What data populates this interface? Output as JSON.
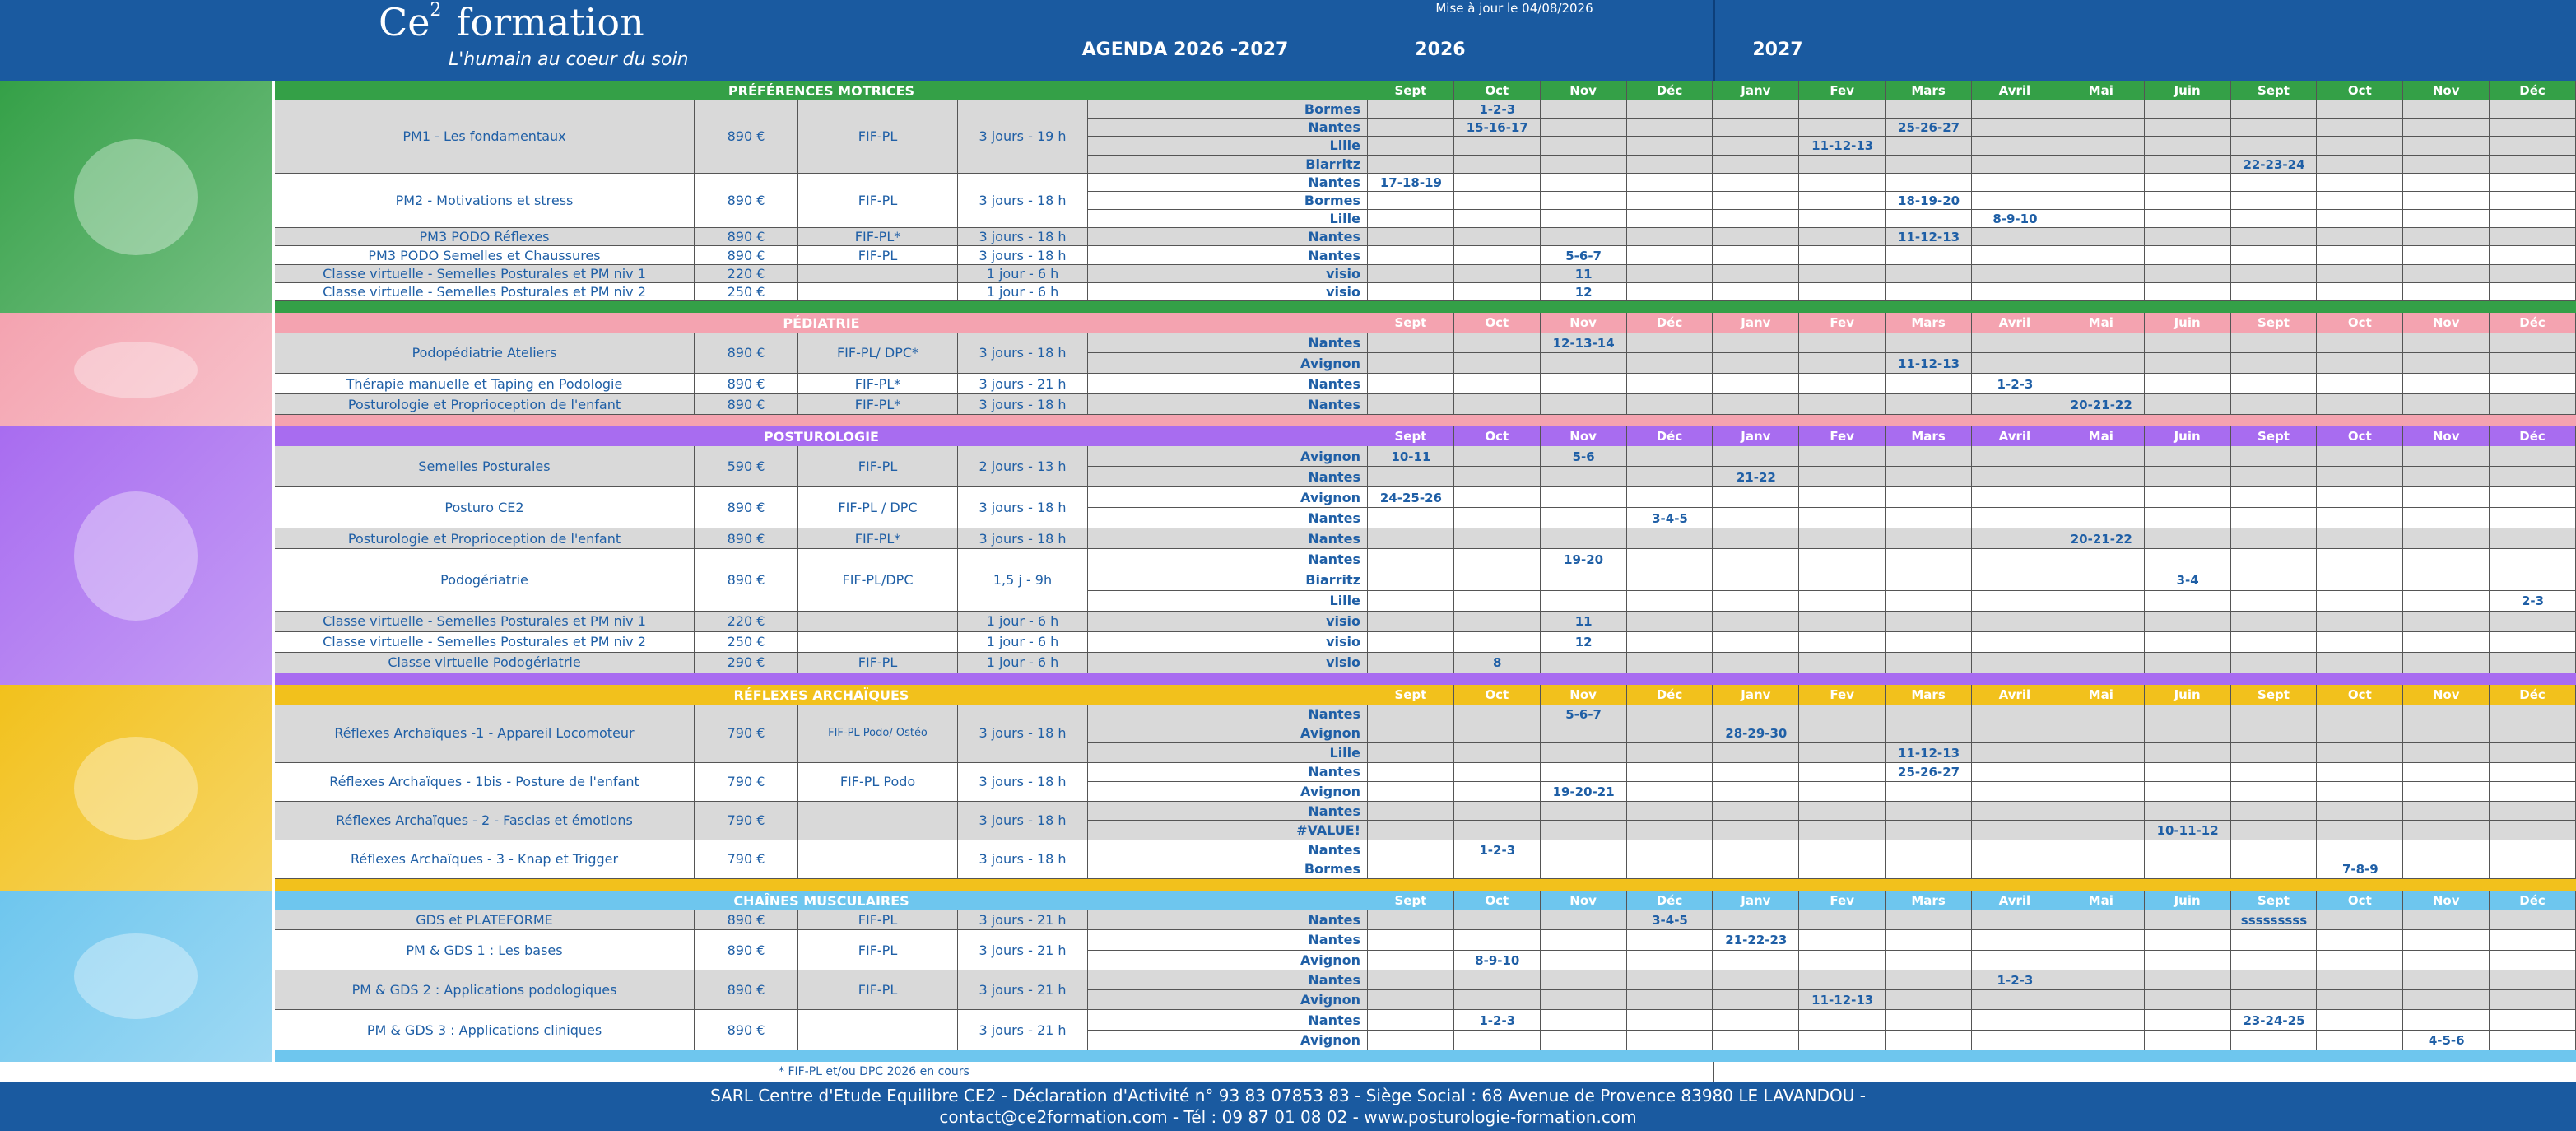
{
  "header": {
    "logo": "Ce",
    "logo_sup": "2",
    "logo_rest": "formation",
    "tagline": "L'humain au coeur du soin",
    "updated": "Mise à jour le 04/08/2026",
    "title": "AGENDA 2026 -2027",
    "year1": "2026",
    "year2": "2027"
  },
  "months": [
    "Sept",
    "Oct",
    "Nov",
    "Déc",
    "Janv",
    "Fev",
    "Mars",
    "Avril",
    "Mai",
    "Juin",
    "Sept",
    "Oct",
    "Nov",
    "Déc"
  ],
  "sections": [
    {
      "title": "PRÉFÉRENCES MOTRICES",
      "color": "#34a047",
      "courses": [
        {
          "name": "PM1 - Les fondamentaux",
          "price": "890 €",
          "funding": "FIF-PL",
          "duration": "3 jours - 19 h",
          "sessions": [
            {
              "city": "Bormes",
              "dates": [
                {
                  "col": 1,
                  "text": "1-2-3"
                }
              ]
            },
            {
              "city": "Nantes",
              "dates": [
                {
                  "col": 1,
                  "text": "15-16-17"
                },
                {
                  "col": 6,
                  "text": "25-26-27"
                }
              ]
            },
            {
              "city": "Lille",
              "dates": [
                {
                  "col": 5,
                  "text": "11-12-13"
                }
              ]
            },
            {
              "city": "Biarritz",
              "dates": [
                {
                  "col": 10,
                  "text": "22-23-24"
                }
              ]
            }
          ]
        },
        {
          "name": "PM2 - Motivations et stress",
          "price": "890 €",
          "funding": "FIF-PL",
          "duration": "3 jours - 18 h",
          "sessions": [
            {
              "city": "Nantes",
              "dates": [
                {
                  "col": 0,
                  "text": "17-18-19"
                }
              ]
            },
            {
              "city": "Bormes",
              "dates": [
                {
                  "col": 6,
                  "text": "18-19-20"
                }
              ]
            },
            {
              "city": "Lille",
              "dates": [
                {
                  "col": 7,
                  "text": "8-9-10"
                }
              ]
            }
          ]
        },
        {
          "name": "PM3 PODO Réflexes",
          "price": "890 €",
          "funding": "FIF-PL*",
          "duration": "3 jours - 18 h",
          "sessions": [
            {
              "city": "Nantes",
              "dates": [
                {
                  "col": 6,
                  "text": "11-12-13"
                }
              ]
            }
          ]
        },
        {
          "name": "PM3 PODO Semelles et Chaussures",
          "price": "890 €",
          "funding": "FIF-PL",
          "duration": "3 jours - 18 h",
          "sessions": [
            {
              "city": "Nantes",
              "dates": [
                {
                  "col": 2,
                  "text": "5-6-7"
                }
              ]
            }
          ]
        },
        {
          "name": "Classe virtuelle - Semelles Posturales et PM niv 1",
          "price": "220 €",
          "duration": "1 jour - 6 h",
          "sessions": [
            {
              "city": "visio",
              "dates": [
                {
                  "col": 2,
                  "text": "11"
                }
              ]
            }
          ]
        },
        {
          "name": "Classe virtuelle - Semelles Posturales et PM niv 2",
          "price": "250 €",
          "duration": "1 jour - 6 h",
          "sessions": [
            {
              "city": "visio",
              "dates": [
                {
                  "col": 2,
                  "text": "12"
                }
              ]
            }
          ]
        }
      ]
    },
    {
      "title": "PÉDIATRIE",
      "color": "#f4a3b0",
      "courses": [
        {
          "name": "Podopédiatrie Ateliers",
          "price": "890 €",
          "funding": "FIF-PL/ DPC*",
          "duration": "3 jours - 18 h",
          "sessions": [
            {
              "city": "Nantes",
              "dates": [
                {
                  "col": 2,
                  "text": "12-13-14"
                }
              ]
            },
            {
              "city": "Avignon",
              "dates": [
                {
                  "col": 6,
                  "text": "11-12-13"
                }
              ]
            }
          ]
        },
        {
          "name": "Thérapie manuelle et Taping en Podologie",
          "price": "890 €",
          "funding": "FIF-PL*",
          "duration": "3 jours  - 21 h",
          "sessions": [
            {
              "city": "Nantes",
              "dates": [
                {
                  "col": 7,
                  "text": "1-2-3"
                }
              ]
            }
          ]
        },
        {
          "name": "Posturologie et Proprioception de l'enfant",
          "price": "890 €",
          "funding": "FIF-PL*",
          "duration": "3 jours - 18 h",
          "sessions": [
            {
              "city": "Nantes",
              "dates": [
                {
                  "col": 8,
                  "text": "20-21-22"
                }
              ]
            }
          ]
        }
      ]
    },
    {
      "title": "POSTUROLOGIE",
      "color": "#a86cf0",
      "courses": [
        {
          "name": "Semelles Posturales",
          "price": "590 €",
          "funding": "FIF-PL",
          "duration": "2 jours - 13 h",
          "sessions": [
            {
              "city": "Avignon",
              "dates": [
                {
                  "col": 0,
                  "text": "10-11"
                },
                {
                  "col": 2,
                  "text": "5-6"
                }
              ]
            },
            {
              "city": "Nantes",
              "dates": [
                {
                  "col": 4,
                  "text": "21-22"
                }
              ]
            }
          ]
        },
        {
          "name": "Posturo CE2",
          "price": "890 €",
          "funding": "FIF-PL / DPC",
          "duration": "3 jours - 18 h",
          "sessions": [
            {
              "city": "Avignon",
              "dates": [
                {
                  "col": 0,
                  "text": "24-25-26"
                }
              ]
            },
            {
              "city": "Nantes",
              "dates": [
                {
                  "col": 3,
                  "text": "3-4-5"
                }
              ]
            }
          ]
        },
        {
          "name": "Posturologie et Proprioception de l'enfant",
          "price": "890 €",
          "funding": "FIF-PL*",
          "duration": "3 jours - 18 h",
          "sessions": [
            {
              "city": "Nantes",
              "dates": [
                {
                  "col": 8,
                  "text": "20-21-22"
                }
              ]
            }
          ]
        },
        {
          "name": "Podogériatrie",
          "price": "890 €",
          "funding": "FIF-PL/DPC",
          "duration": "1,5 j - 9h",
          "sessions": [
            {
              "city": "Nantes",
              "dates": [
                {
                  "col": 2,
                  "text": "19-20"
                }
              ]
            },
            {
              "city": "Biarritz",
              "dates": [
                {
                  "col": 9,
                  "text": "3-4"
                }
              ]
            },
            {
              "city": "Lille",
              "dates": [
                {
                  "col": 13,
                  "text": "2-3"
                }
              ]
            }
          ]
        },
        {
          "name": "Classe virtuelle - Semelles Posturales et PM niv 1",
          "price": "220 €",
          "duration": "1 jour - 6 h",
          "sessions": [
            {
              "city": "visio",
              "dates": [
                {
                  "col": 2,
                  "text": "11"
                }
              ]
            }
          ]
        },
        {
          "name": "Classe virtuelle - Semelles Posturales et PM niv 2",
          "price": "250 €",
          "duration": "1 jour - 6 h",
          "sessions": [
            {
              "city": "visio",
              "dates": [
                {
                  "col": 2,
                  "text": "12"
                }
              ]
            }
          ]
        },
        {
          "name": "Classe virtuelle Podogériatrie",
          "price": "290 €",
          "funding": "FIF-PL",
          "duration": "1 jour - 6 h",
          "sessions": [
            {
              "city": "visio",
              "dates": [
                {
                  "col": 1,
                  "text": "8"
                }
              ]
            }
          ]
        }
      ]
    },
    {
      "title": "RÉFLEXES ARCHAÏQUES",
      "color": "#f2c11c",
      "courses": [
        {
          "name": "Réflexes Archaïques -1 - Appareil Locomoteur",
          "price": "790 €",
          "funding": "FIF-PL Podo/ Ostéo",
          "duration": "3 jours - 18 h",
          "sessions": [
            {
              "city": "Nantes",
              "dates": [
                {
                  "col": 2,
                  "text": "5-6-7"
                }
              ]
            },
            {
              "city": "Avignon",
              "dates": [
                {
                  "col": 4,
                  "text": "28-29-30"
                }
              ]
            },
            {
              "city": "Lille",
              "dates": [
                {
                  "col": 6,
                  "text": "11-12-13"
                }
              ]
            }
          ]
        },
        {
          "name": "Réflexes Archaïques - 1bis - Posture de l'enfant",
          "price": "790 €",
          "funding": "FIF-PL Podo",
          "duration": "3 jours - 18 h",
          "sessions": [
            {
              "city": "Nantes",
              "dates": [
                {
                  "col": 6,
                  "text": "25-26-27"
                }
              ]
            },
            {
              "city": "Avignon",
              "dates": [
                {
                  "col": 2,
                  "text": "19-20-21"
                }
              ]
            }
          ]
        },
        {
          "name": "Réflexes Archaïques - 2 - Fascias et émotions",
          "price": "790 €",
          "duration": "3 jours - 18 h",
          "sessions": [
            {
              "city": "Nantes",
              "dates": []
            },
            {
              "city": "#VALUE!",
              "dates": [
                {
                  "col": 9,
                  "text": "10-11-12"
                }
              ]
            }
          ]
        },
        {
          "name": "Réflexes Archaïques - 3 - Knap et Trigger",
          "price": "790 €",
          "duration": "3 jours - 18 h",
          "sessions": [
            {
              "city": "Nantes",
              "dates": [
                {
                  "col": 1,
                  "text": "1-2-3"
                }
              ]
            },
            {
              "city": "Bormes",
              "dates": [
                {
                  "col": 11,
                  "text": "7-8-9"
                }
              ]
            }
          ]
        }
      ]
    },
    {
      "title": "CHAÎNES MUSCULAIRES",
      "color": "#6ec6ee",
      "courses": [
        {
          "name": "GDS et PLATEFORME",
          "price": "890 €",
          "funding": "FIF-PL",
          "duration": "3 jours - 21 h",
          "sessions": [
            {
              "city": "Nantes",
              "dates": [
                {
                  "col": 3,
                  "text": "3-4-5"
                },
                {
                  "col": 10,
                  "text": "sssssssss"
                }
              ]
            }
          ]
        },
        {
          "name": "PM & GDS 1 : Les bases",
          "price": "890 €",
          "funding": "FIF-PL",
          "duration": "3 jours - 21 h",
          "sessions": [
            {
              "city": "Nantes",
              "dates": [
                {
                  "col": 4,
                  "text": "21-22-23"
                }
              ]
            },
            {
              "city": "Avignon",
              "dates": [
                {
                  "col": 1,
                  "text": "8-9-10"
                }
              ]
            }
          ]
        },
        {
          "name": "PM & GDS 2 : Applications podologiques",
          "price": "890 €",
          "funding": "FIF-PL",
          "duration": "3 jours - 21 h",
          "sessions": [
            {
              "city": "Nantes",
              "dates": [
                {
                  "col": 7,
                  "text": "1-2-3"
                }
              ]
            },
            {
              "city": "Avignon",
              "dates": [
                {
                  "col": 5,
                  "text": "11-12-13"
                }
              ]
            }
          ]
        },
        {
          "name": "PM & GDS 3 : Applications cliniques",
          "price": "890 €",
          "duration": "3 jours - 21 h",
          "sessions": [
            {
              "city": "Nantes",
              "dates": [
                {
                  "col": 1,
                  "text": "1-2-3"
                },
                {
                  "col": 10,
                  "text": "23-24-25"
                }
              ]
            },
            {
              "city": "Avignon",
              "dates": [
                {
                  "col": 12,
                  "text": "4-5-6"
                }
              ]
            }
          ]
        }
      ]
    }
  ],
  "footnote": "* FIF-PL et/ou DPC 2026 en cours",
  "footer": [
    "SARL Centre d'Etude Equilibre CE2 - Déclaration d'Activité n° 93 83 07853 83 - Siège Social : 68 Avenue de Provence 83980 LE LAVANDOU -",
    "contact@ce2formation.com - Tél : 09 87 01 08 02 - www.posturologie-formation.com"
  ]
}
